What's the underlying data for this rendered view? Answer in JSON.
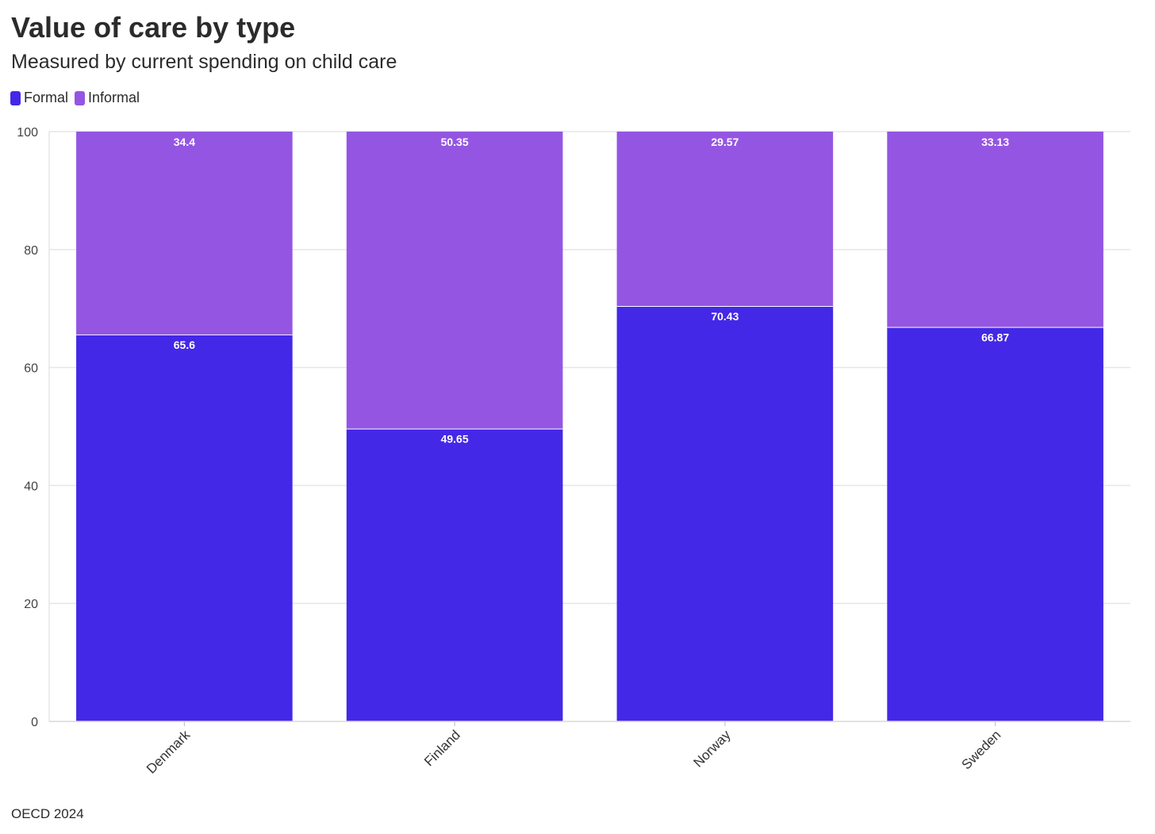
{
  "chart_data": {
    "type": "bar",
    "stacked": true,
    "title": "Value of care by type",
    "subtitle": "Measured by current spending on child care",
    "source": "OECD 2024",
    "categories": [
      "Denmark",
      "Finland",
      "Norway",
      "Sweden"
    ],
    "series": [
      {
        "name": "Formal",
        "color": "#4328e7",
        "values": [
          65.6,
          49.65,
          70.43,
          66.87
        ],
        "labels": [
          "65.6",
          "49.65",
          "70.43",
          "66.87"
        ]
      },
      {
        "name": "Informal",
        "color": "#9455e3",
        "values": [
          34.4,
          50.35,
          29.57,
          33.13
        ],
        "labels": [
          "34.4",
          "50.35",
          "29.57",
          "33.13"
        ]
      }
    ],
    "ylim": [
      0,
      100
    ],
    "yticks": [
      0,
      20,
      40,
      60,
      80,
      100
    ],
    "grid": true,
    "legend_position": "top-left"
  }
}
